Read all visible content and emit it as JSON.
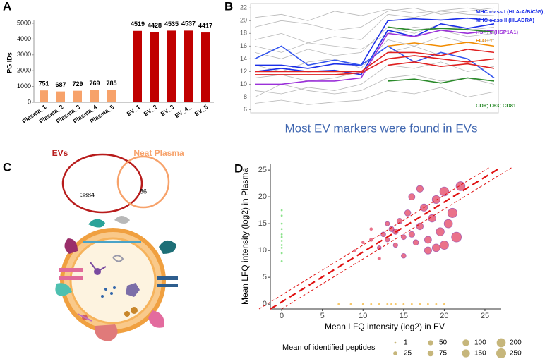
{
  "chart_data": [
    {
      "type": "bar",
      "panel_label": "A",
      "ylabel": "PG IDs",
      "categories": [
        "Plasma_1",
        "Plasma_2",
        "Plasma_3",
        "Plasma_4",
        "Plasma_5",
        "EV_1",
        "EV_2",
        "EV_3",
        "EV_4_",
        "EV_5"
      ],
      "values": [
        751,
        687,
        729,
        769,
        785,
        4519,
        4428,
        4535,
        4537,
        4417
      ],
      "colors": [
        "#f7a26a",
        "#f7a26a",
        "#f7a26a",
        "#f7a26a",
        "#f7a26a",
        "#c00000",
        "#c00000",
        "#c00000",
        "#c00000",
        "#c00000"
      ],
      "ylim": [
        0,
        5000
      ],
      "yticks": [
        0,
        1000,
        2000,
        3000,
        4000,
        5000
      ]
    },
    {
      "type": "line",
      "panel_label": "B",
      "caption": "Most EV markers were found in EVs",
      "categories": [
        null,
        null,
        null,
        null,
        null,
        null,
        null,
        null,
        null,
        null
      ],
      "ylim": [
        5.5,
        22.7
      ],
      "yticks": [
        6,
        8,
        10,
        12,
        14,
        16,
        18,
        20,
        22
      ],
      "series": [
        {
          "color": "#b8b8b8",
          "values": [
            17,
            18,
            16.5,
            17.5,
            17,
            21,
            20.5,
            21.5,
            21,
            20.8
          ]
        },
        {
          "color": "#b8b8b8",
          "values": [
            15,
            14,
            15.5,
            14.5,
            15,
            19,
            18,
            19.5,
            18.5,
            19
          ]
        },
        {
          "color": "#b8b8b8",
          "values": [
            19,
            20,
            19.5,
            18.5,
            19,
            21.5,
            22,
            21,
            21.5,
            22
          ]
        },
        {
          "color": "#b8b8b8",
          "values": [
            9,
            8.5,
            9.5,
            9,
            10,
            13,
            12.5,
            13.5,
            12,
            12.8
          ]
        },
        {
          "color": "#b8b8b8",
          "values": [
            7,
            7.5,
            6.8,
            7.2,
            7.5,
            9,
            8.5,
            9.5,
            8,
            8.8
          ]
        },
        {
          "color": "#b8b8b8",
          "values": [
            13,
            12,
            13.5,
            14,
            12.5,
            17,
            16,
            17.5,
            16.5,
            17
          ]
        },
        {
          "color": "#b8b8b8",
          "values": [
            11,
            11.5,
            10.5,
            11,
            12,
            15,
            16,
            14.5,
            15.5,
            15
          ]
        },
        {
          "color": "#b8b8b8",
          "values": [
            20.5,
            21,
            20,
            21.5,
            20.8,
            21.8,
            21.2,
            21.6,
            22,
            21.4
          ]
        },
        {
          "color": "#b8b8b8",
          "values": [
            8,
            10,
            9,
            8.5,
            9,
            11,
            11.5,
            10.5,
            11,
            10
          ]
        },
        {
          "color": "#b8b8b8",
          "values": [
            16,
            15,
            16.5,
            16,
            15.5,
            18,
            19,
            18.5,
            17.5,
            18
          ]
        },
        {
          "name": "MHC class I (HLA-A/B/C/G);",
          "color": "#1a2ee8",
          "values": [
            13,
            13,
            12.5,
            13.2,
            13,
            20,
            20.3,
            20.1,
            20.4,
            20
          ]
        },
        {
          "name": "MHC class II (HLADRA)",
          "color": "#1a2ee8",
          "values": [
            12,
            12.5,
            12,
            12.2,
            11.5,
            18.5,
            17.5,
            19.5,
            18.8,
            19.5
          ]
        },
        {
          "color": "#3355ee",
          "values": [
            14,
            16,
            13,
            13.8,
            13,
            16,
            13.5,
            15,
            14,
            11
          ]
        },
        {
          "name": "HSP70 (HSP1A1)",
          "color": "#9b30d9",
          "values": [
            10,
            10,
            10.5,
            10.5,
            11,
            18,
            17.5,
            18.5,
            18,
            18.5
          ]
        },
        {
          "name": "FLOT1",
          "color": "#f28c00",
          "values": [
            null,
            null,
            null,
            null,
            null,
            16,
            16.5,
            16,
            16.6,
            16
          ]
        },
        {
          "color": "#2a8a2a",
          "values": [
            null,
            null,
            null,
            null,
            null,
            19,
            18.5,
            18.8,
            18.6,
            18.2
          ]
        },
        {
          "color": "#e02020",
          "values": [
            12,
            12,
            12,
            12,
            12,
            15,
            15,
            14.5,
            15.5,
            15
          ]
        },
        {
          "color": "#e02020",
          "values": [
            11.5,
            11.5,
            11.5,
            11.5,
            11.8,
            14,
            14.5,
            14,
            13.5,
            14
          ]
        },
        {
          "color": "#e02020",
          "values": [
            null,
            null,
            null,
            null,
            null,
            13,
            13.5,
            12.8,
            13.2,
            12.5
          ]
        },
        {
          "name": "CD9; C63; CD81",
          "color": "#2a8a2a",
          "values": [
            null,
            null,
            null,
            null,
            null,
            10.5,
            10.8,
            10.2,
            11,
            10.5
          ]
        }
      ]
    },
    {
      "type": "venn",
      "panel_label": "C",
      "sets": [
        {
          "name": "EVs",
          "color": "#b81c1c"
        },
        {
          "name": "Neat Plasma",
          "color": "#f7a26a"
        }
      ],
      "values": [
        3884,
        86
      ]
    },
    {
      "type": "scatter",
      "panel_label": "D",
      "xlabel": "Mean LFQ intensity (log2) in EV",
      "ylabel": "Mean LFQ intensity (log2) in Plasma",
      "xlim": [
        -1.4,
        27
      ],
      "ylim": [
        -0.9,
        26.2
      ],
      "xticks": [
        0,
        5,
        10,
        15,
        20,
        25
      ],
      "yticks": [
        0,
        5,
        10,
        15,
        20,
        25
      ],
      "series": [
        {
          "color": "#3ccf3c",
          "x": [
            0,
            0,
            0,
            0,
            0,
            0,
            0,
            0,
            0,
            0,
            0
          ],
          "values": [
            8,
            9.5,
            10.5,
            11,
            11.8,
            12.5,
            13,
            14,
            15,
            16.5,
            17.5
          ],
          "sizes": [
            1,
            1,
            1,
            1,
            1,
            1,
            1,
            1,
            1,
            1,
            1
          ]
        },
        {
          "color": "#f0a30a",
          "x": [
            7,
            8.5,
            10,
            11,
            12,
            13,
            13.5,
            14,
            15,
            16,
            17,
            18,
            19,
            20
          ],
          "values": [
            0,
            0,
            0,
            0,
            0,
            0,
            0,
            0,
            0,
            0,
            0,
            0,
            0,
            0
          ],
          "sizes": [
            1,
            1,
            1,
            1,
            1,
            1,
            1,
            1,
            1,
            1,
            1,
            1,
            1,
            1
          ]
        },
        {
          "color": "#dc143c",
          "x": [
            9,
            10,
            11,
            12,
            12.5,
            13,
            13.5,
            14,
            14.5,
            15,
            15.5,
            16,
            16.5,
            17,
            17.5,
            18,
            18.5,
            19,
            19.5,
            20,
            20,
            21,
            21.5,
            22,
            16,
            15,
            13,
            18,
            14,
            12,
            20.5,
            17,
            11,
            19
          ],
          "values": [
            10,
            11.5,
            12,
            10.5,
            13,
            12,
            14,
            11,
            15.5,
            12.5,
            17,
            13,
            11.5,
            14.5,
            18,
            12,
            16,
            19.5,
            13.5,
            21,
            11,
            17,
            12.5,
            22,
            20,
            9,
            15,
            10,
            13.5,
            8.5,
            15,
            21.5,
            14,
            10.5
          ],
          "sizes": [
            5,
            10,
            20,
            25,
            40,
            30,
            50,
            35,
            60,
            45,
            80,
            70,
            60,
            100,
            120,
            110,
            130,
            150,
            160,
            200,
            180,
            220,
            250,
            200,
            90,
            40,
            30,
            120,
            55,
            15,
            170,
            100,
            12,
            140
          ]
        }
      ],
      "size_legend": {
        "title": "Mean of identified peptides",
        "sizes": [
          1,
          25,
          50,
          75,
          100,
          150,
          200,
          250
        ]
      }
    }
  ]
}
